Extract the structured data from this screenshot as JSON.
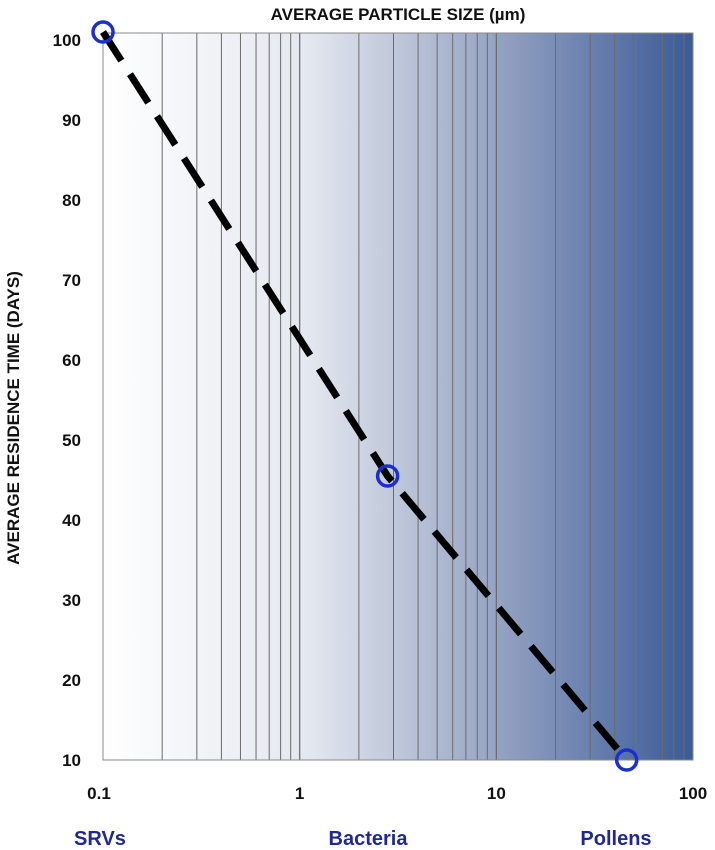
{
  "chart_data": {
    "type": "line",
    "title": "AVERAGE PARTICLE SIZE (µm)",
    "xlabel": "",
    "ylabel": "AVERAGE RESIDENCE TIME (DAYS)",
    "x_scale": "log",
    "xlim": [
      0.1,
      100
    ],
    "ylim": [
      10,
      102
    ],
    "x_ticks": [
      {
        "value": 0.1,
        "label": "0.1"
      },
      {
        "value": 1,
        "label": "1"
      },
      {
        "value": 10,
        "label": "10"
      },
      {
        "value": 100,
        "label": "100"
      }
    ],
    "y_ticks": [
      {
        "value": 10,
        "label": "10"
      },
      {
        "value": 20,
        "label": "20"
      },
      {
        "value": 30,
        "label": "30"
      },
      {
        "value": 40,
        "label": "40"
      },
      {
        "value": 50,
        "label": "50"
      },
      {
        "value": 60,
        "label": "60"
      },
      {
        "value": 70,
        "label": "70"
      },
      {
        "value": 80,
        "label": "80"
      },
      {
        "value": 90,
        "label": "90"
      },
      {
        "value": 100,
        "label": "100"
      }
    ],
    "grid": "vertical log minor",
    "series": [
      {
        "line_style": "dashed",
        "line_color": "#000000",
        "marker_color": "#1a2fd0",
        "points": [
          {
            "x": 0.1,
            "y": 101,
            "label": "SRVs"
          },
          {
            "x": 2.8,
            "y": 45.5,
            "label": "Bacteria"
          },
          {
            "x": 46,
            "y": 10,
            "label": "Pollens"
          }
        ]
      }
    ],
    "category_labels": [
      "SRVs",
      "Bacteria",
      "Pollens"
    ],
    "category_label_color": "#1f2a8c",
    "background_gradient": [
      "#ffffff",
      "#3a5a98"
    ]
  }
}
